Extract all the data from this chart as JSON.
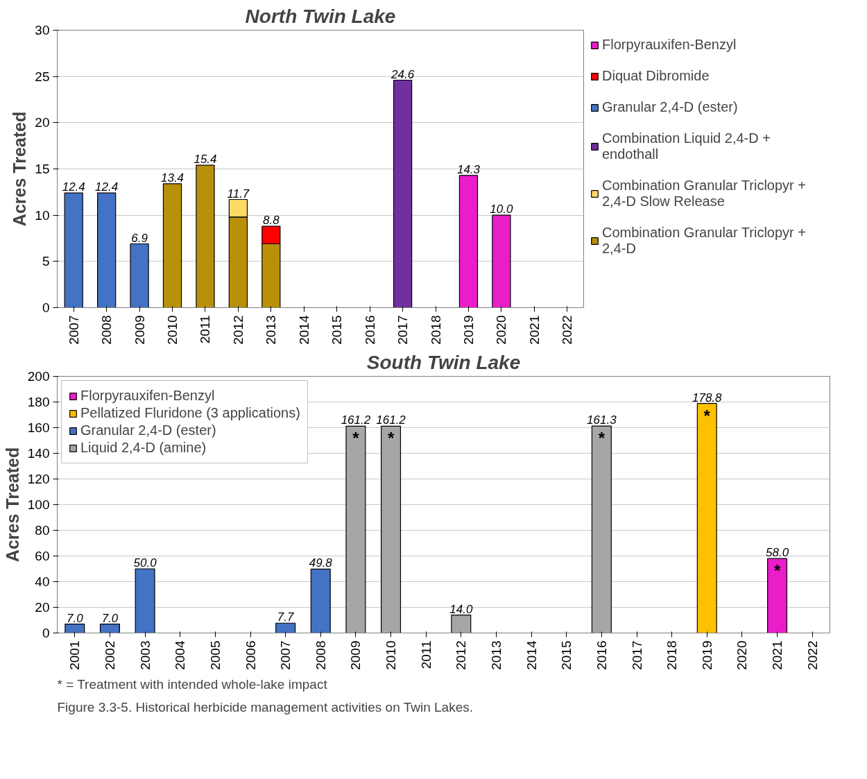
{
  "chart_data": [
    {
      "type": "bar",
      "title": "North Twin Lake",
      "ylabel": "Acres Treated",
      "stacked": true,
      "categories": [
        "2007",
        "2008",
        "2009",
        "2010",
        "2011",
        "2012",
        "2013",
        "2014",
        "2015",
        "2016",
        "2017",
        "2018",
        "2019",
        "2020",
        "2021",
        "2022"
      ],
      "series": [
        {
          "name": "Combination Granular Triclopyr + 2,4-D",
          "color": "#b8900a",
          "values": [
            null,
            null,
            null,
            13.4,
            15.4,
            9.8,
            6.9,
            null,
            null,
            null,
            null,
            null,
            null,
            null,
            null,
            null
          ]
        },
        {
          "name": "Combination Granular Triclopyr + 2,4-D Slow Release",
          "color": "#ffd966",
          "values": [
            null,
            null,
            null,
            null,
            null,
            1.9,
            null,
            null,
            null,
            null,
            null,
            null,
            null,
            null,
            null,
            null
          ]
        },
        {
          "name": "Combination Liquid 2,4-D + endothall",
          "color": "#7030a0",
          "values": [
            null,
            null,
            null,
            null,
            null,
            null,
            null,
            null,
            null,
            null,
            24.6,
            null,
            null,
            null,
            null,
            null
          ]
        },
        {
          "name": "Granular 2,4-D (ester)",
          "color": "#4472c4",
          "values": [
            12.4,
            12.4,
            6.9,
            null,
            null,
            null,
            null,
            null,
            null,
            null,
            null,
            null,
            null,
            null,
            null,
            null
          ]
        },
        {
          "name": "Diquat Dibromide",
          "color": "#ff0000",
          "values": [
            null,
            null,
            null,
            null,
            null,
            null,
            1.9,
            null,
            null,
            null,
            null,
            null,
            null,
            null,
            null,
            null
          ]
        },
        {
          "name": "Florpyrauxifen-Benzyl",
          "color": "#e91ec8",
          "values": [
            null,
            null,
            null,
            null,
            null,
            null,
            null,
            null,
            null,
            null,
            null,
            null,
            14.3,
            10.0,
            null,
            null
          ]
        }
      ],
      "totals": [
        "12.4",
        "12.4",
        "6.9",
        "13.4",
        "15.4",
        "11.7",
        "8.8",
        null,
        null,
        null,
        "24.6",
        null,
        "14.3",
        "10.0",
        null,
        null
      ],
      "ylim": [
        0,
        30
      ],
      "yticks": [
        0,
        5,
        10,
        15,
        20,
        25,
        30
      ],
      "grid": "y",
      "legend": "right"
    },
    {
      "type": "bar",
      "title": "South Twin Lake",
      "ylabel": "Acres Treated",
      "stacked": true,
      "categories": [
        "2001",
        "2002",
        "2003",
        "2004",
        "2005",
        "2006",
        "2007",
        "2008",
        "2009",
        "2010",
        "2011",
        "2012",
        "2013",
        "2014",
        "2015",
        "2016",
        "2017",
        "2018",
        "2019",
        "2020",
        "2021",
        "2022"
      ],
      "series": [
        {
          "name": "Liquid 2,4-D (amine)",
          "color": "#a6a6a6",
          "values": [
            null,
            null,
            null,
            null,
            null,
            null,
            null,
            null,
            161.2,
            161.2,
            null,
            14.0,
            null,
            null,
            null,
            161.3,
            null,
            null,
            null,
            null,
            null,
            null
          ]
        },
        {
          "name": "Granular 2,4-D (ester)",
          "color": "#4472c4",
          "values": [
            7.0,
            7.0,
            50.0,
            null,
            null,
            null,
            7.7,
            49.8,
            null,
            null,
            null,
            null,
            null,
            null,
            null,
            null,
            null,
            null,
            null,
            null,
            null,
            null
          ]
        },
        {
          "name": "Pellatized Fluridone (3 applications)",
          "color": "#ffc000",
          "values": [
            null,
            null,
            null,
            null,
            null,
            null,
            null,
            null,
            null,
            null,
            null,
            null,
            null,
            null,
            null,
            null,
            null,
            null,
            178.8,
            null,
            null,
            null
          ]
        },
        {
          "name": "Florpyrauxifen-Benzyl",
          "color": "#e91ec8",
          "values": [
            null,
            null,
            null,
            null,
            null,
            null,
            null,
            null,
            null,
            null,
            null,
            null,
            null,
            null,
            null,
            null,
            null,
            null,
            null,
            null,
            58.0,
            null
          ]
        }
      ],
      "totals": [
        "7.0",
        "7.0",
        "50.0",
        null,
        null,
        null,
        "7.7",
        "49.8",
        "161.2",
        "161.2",
        null,
        "14.0",
        null,
        null,
        null,
        "161.3",
        null,
        null,
        "178.8",
        null,
        "58.0",
        null
      ],
      "ylim": [
        0,
        200
      ],
      "yticks": [
        0,
        20,
        40,
        60,
        80,
        100,
        120,
        140,
        160,
        180,
        200
      ],
      "grid": "y",
      "legend": "top left",
      "annotations": [
        {
          "text": "*",
          "x": "2009",
          "y": 161.2
        },
        {
          "text": "*",
          "x": "2010",
          "y": 161.2
        },
        {
          "text": "*",
          "x": "2016",
          "y": 161.3
        },
        {
          "text": "*",
          "x": "2019",
          "y": 178.8
        },
        {
          "text": "*",
          "x": "2021",
          "y": 58.0
        },
        "*  = Treatment with intended whole-lake impact",
        "Figure 3.3-5.  Historical herbicide management activities on Twin Lakes."
      ]
    }
  ]
}
